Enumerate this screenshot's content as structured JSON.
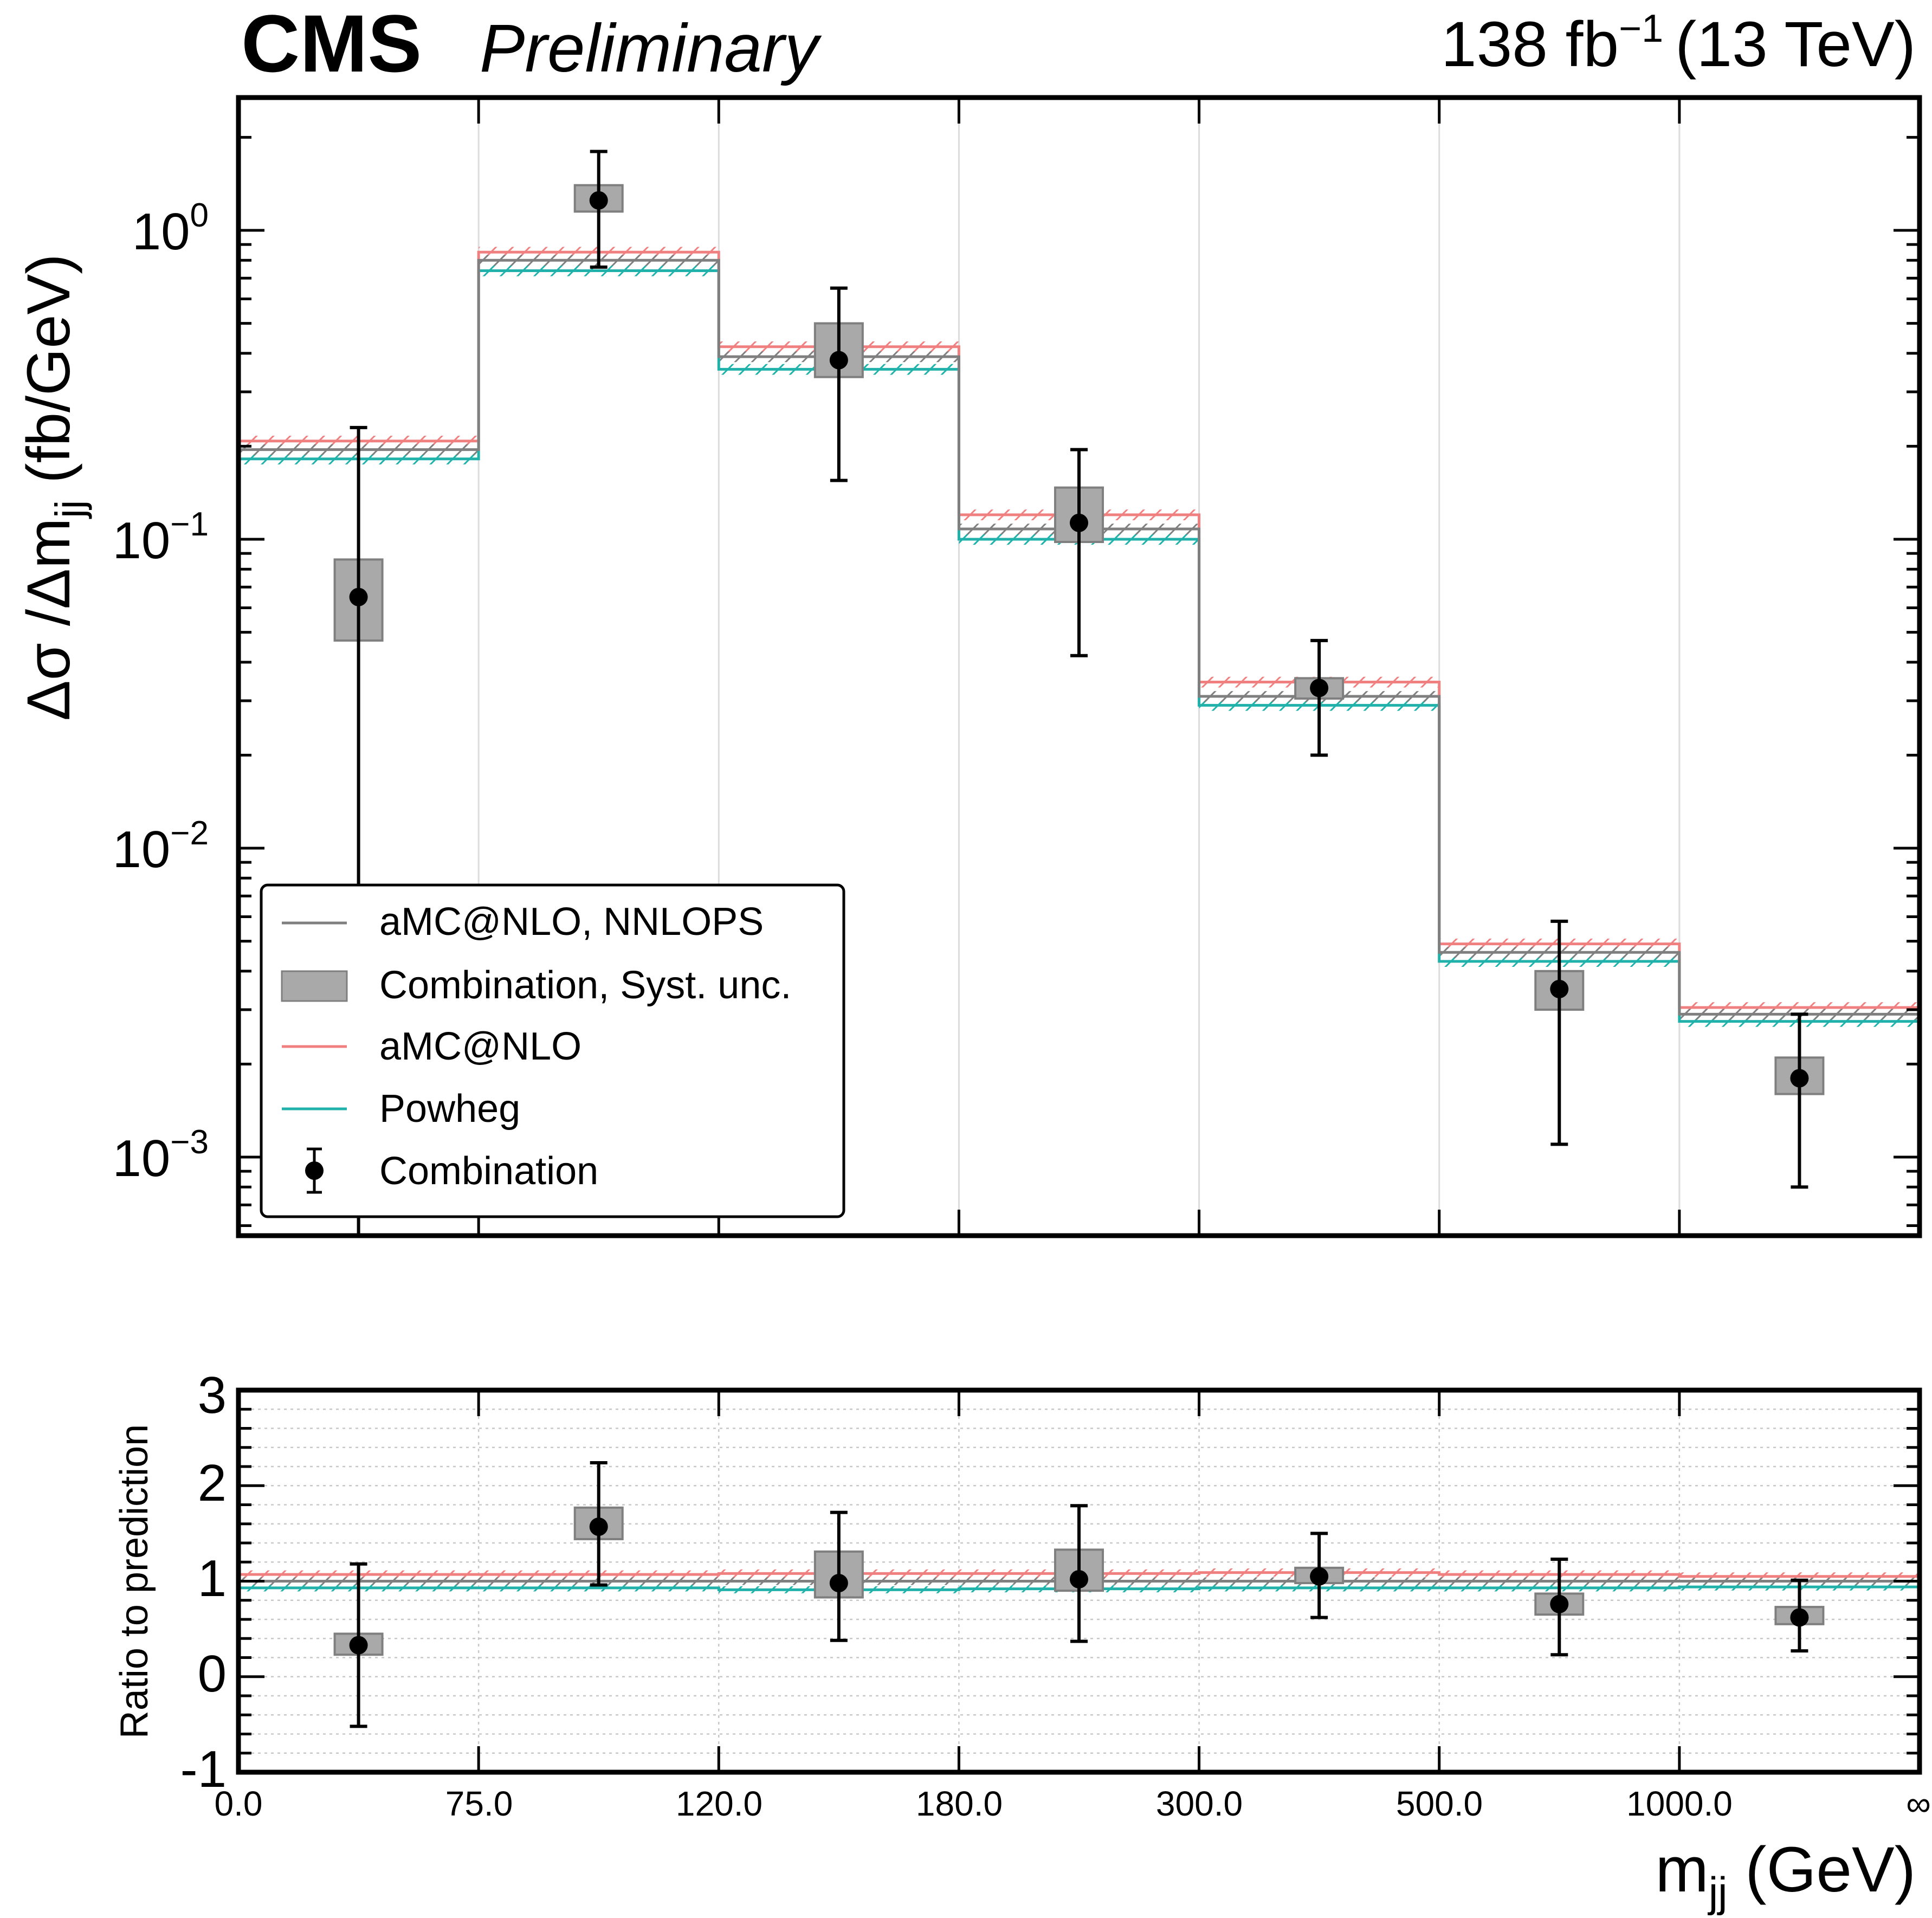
{
  "header": {
    "experiment": "CMS",
    "status": "Preliminary",
    "lumi_value": "138 fb",
    "lumi_exp": "−1",
    "energy": "(13 TeV)"
  },
  "main_axes": {
    "ylabel_prefix": "Δσ /Δm",
    "ylabel_sub": "jj",
    "ylabel_suffix": " (fb/GeV)",
    "ytick_labels": [
      {
        "base": "10",
        "exp": "0"
      },
      {
        "base": "10",
        "exp": "−1"
      },
      {
        "base": "10",
        "exp": "−2"
      },
      {
        "base": "10",
        "exp": "−3"
      }
    ]
  },
  "ratio_axes": {
    "ylabel": "Ratio to prediction",
    "ytick_labels": [
      "3",
      "2",
      "1",
      "0",
      "-1"
    ]
  },
  "xaxis": {
    "label_prefix": "m",
    "label_sub": "jj",
    "label_suffix": " (GeV)",
    "tick_labels": [
      "0.0",
      "75.0",
      "120.0",
      "180.0",
      "300.0",
      "500.0",
      "1000.0",
      "∞"
    ]
  },
  "legend": {
    "items": [
      {
        "label": "aMC@NLO, NNLOPS",
        "kind": "line",
        "color": "#7f7f7f"
      },
      {
        "label": "Combination, Syst. unc.",
        "kind": "box",
        "color": "#a9a9a9"
      },
      {
        "label": "aMC@NLO",
        "kind": "line",
        "color": "#f08080"
      },
      {
        "label": "Powheg",
        "kind": "line",
        "color": "#20b2aa"
      },
      {
        "label": "Combination",
        "kind": "errorbar",
        "color": "#000000"
      }
    ]
  },
  "colors": {
    "nnlops": "#7f7f7f",
    "amcnlo": "#f08080",
    "powheg": "#20b2aa",
    "syst": "#a9a9a9",
    "data": "#000000"
  },
  "chart_data": [
    {
      "type": "line",
      "panel": "main",
      "xlabel": "m_jj (GeV)",
      "ylabel": "Δσ /Δm_jj (fb/GeV)",
      "yscale": "log",
      "ylim": [
        0.00055,
        2.6
      ],
      "bin_edges": [
        "0.0",
        "75.0",
        "120.0",
        "180.0",
        "300.0",
        "500.0",
        "1000.0",
        "∞"
      ],
      "grid": "vertical",
      "legend_position": "lower-left",
      "series": [
        {
          "name": "aMC@NLO, NNLOPS",
          "style": "step",
          "values": [
            0.195,
            0.8,
            0.39,
            0.108,
            0.031,
            0.0046,
            0.0029
          ]
        },
        {
          "name": "aMC@NLO",
          "style": "step",
          "values": [
            0.208,
            0.85,
            0.42,
            0.12,
            0.0345,
            0.0049,
            0.00305
          ]
        },
        {
          "name": "Powheg",
          "style": "step",
          "values": [
            0.182,
            0.74,
            0.355,
            0.1,
            0.029,
            0.0043,
            0.00275
          ]
        },
        {
          "name": "Combination",
          "style": "errorbar",
          "values": [
            0.065,
            1.25,
            0.38,
            0.113,
            0.033,
            0.0035,
            0.0018
          ],
          "err_low": [
            0.00055,
            0.76,
            0.155,
            0.042,
            0.02,
            0.0011,
            0.0008
          ],
          "err_high": [
            0.23,
            1.8,
            0.65,
            0.195,
            0.047,
            0.0058,
            0.0029
          ]
        },
        {
          "name": "Combination, Syst. unc.",
          "style": "box",
          "low": [
            0.047,
            1.15,
            0.335,
            0.098,
            0.0305,
            0.003,
            0.0016
          ],
          "high": [
            0.086,
            1.4,
            0.5,
            0.147,
            0.0355,
            0.004,
            0.0021
          ]
        }
      ]
    },
    {
      "type": "line",
      "panel": "ratio",
      "ylabel": "Ratio to prediction",
      "ylim": [
        -1,
        3
      ],
      "grid": "both",
      "series": [
        {
          "name": "aMC@NLO, NNLOPS",
          "style": "step",
          "values": [
            1.0,
            1.0,
            1.0,
            1.0,
            1.0,
            1.0,
            1.0
          ]
        },
        {
          "name": "aMC@NLO",
          "style": "step",
          "values": [
            1.07,
            1.07,
            1.08,
            1.08,
            1.09,
            1.07,
            1.05
          ]
        },
        {
          "name": "Powheg",
          "style": "step",
          "values": [
            0.93,
            0.93,
            0.91,
            0.92,
            0.93,
            0.93,
            0.94
          ]
        },
        {
          "name": "Combination",
          "style": "errorbar",
          "values": [
            0.33,
            1.57,
            0.98,
            1.02,
            1.05,
            0.76,
            0.62
          ],
          "err_low": [
            -0.52,
            0.96,
            0.38,
            0.37,
            0.62,
            0.23,
            0.27
          ],
          "err_high": [
            1.18,
            2.24,
            1.72,
            1.79,
            1.5,
            1.23,
            1.01
          ]
        },
        {
          "name": "Combination, Syst. unc.",
          "style": "box",
          "low": [
            0.23,
            1.44,
            0.83,
            0.9,
            0.98,
            0.65,
            0.55
          ],
          "high": [
            0.45,
            1.77,
            1.31,
            1.33,
            1.14,
            0.87,
            0.73
          ]
        }
      ]
    }
  ]
}
